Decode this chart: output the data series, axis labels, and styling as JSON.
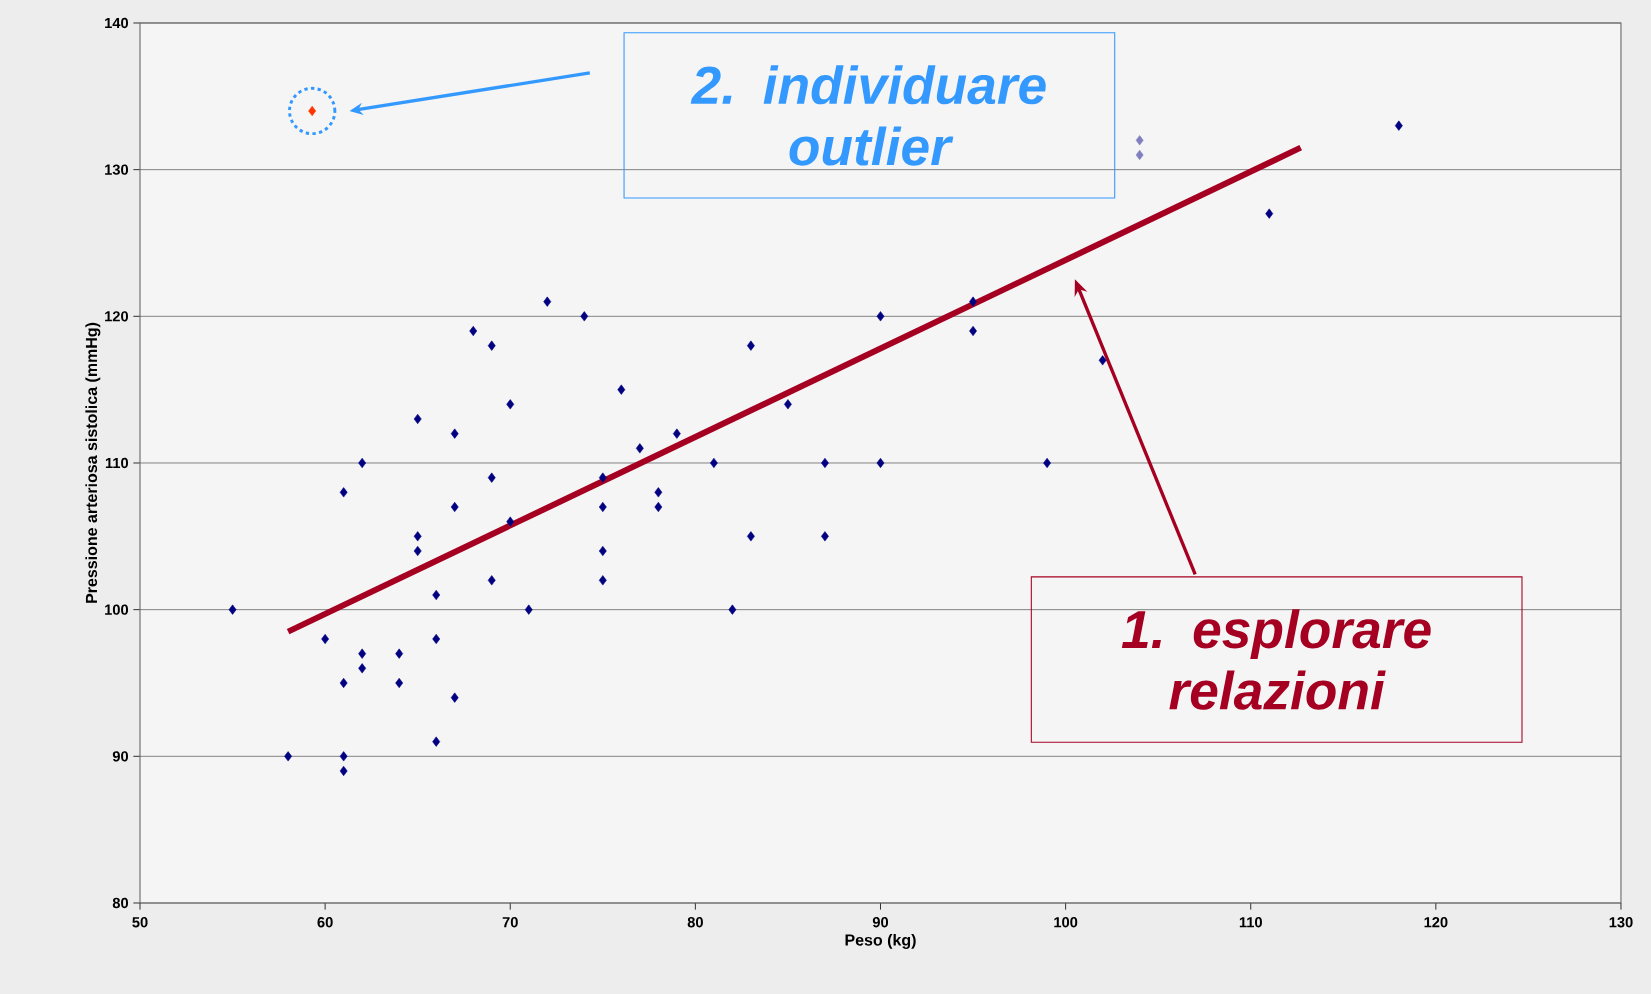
{
  "chart_data": {
    "type": "scatter",
    "xlabel": "Peso (kg)",
    "ylabel": "Pressione arteriosa sistolica  (mmHg)",
    "xlim": [
      50,
      130
    ],
    "xticks": [
      50,
      60,
      70,
      80,
      90,
      100,
      110,
      120,
      130
    ],
    "ylim": [
      80,
      140
    ],
    "yticks": [
      80,
      90,
      100,
      110,
      120,
      130,
      140
    ],
    "grid": "y",
    "marker": "diamond",
    "series": [
      {
        "x": [
          55,
          58,
          59.3,
          60,
          61,
          61,
          61,
          61,
          62,
          62,
          62,
          64,
          64,
          65,
          65,
          65,
          66,
          66,
          66,
          67,
          67,
          67,
          68,
          69,
          69,
          69,
          70,
          70,
          71,
          72,
          74,
          75,
          75,
          75,
          75,
          76,
          77,
          78,
          78,
          79,
          81,
          82,
          83,
          83,
          85,
          87,
          87,
          90,
          90,
          95,
          95,
          99,
          102,
          104,
          104,
          111,
          118
        ],
        "values": [
          100,
          90,
          134,
          98,
          95,
          108,
          90,
          89,
          110,
          97,
          96,
          97,
          95,
          113,
          105,
          104,
          101,
          98,
          91,
          112,
          107,
          94,
          119,
          118,
          109,
          102,
          114,
          106,
          100,
          121,
          120,
          109,
          107,
          104,
          102,
          115,
          111,
          108,
          107,
          112,
          110,
          100,
          118,
          105,
          114,
          110,
          105,
          120,
          110,
          121,
          119,
          110,
          117,
          132,
          131,
          127,
          133
        ],
        "colors": [
          "#000080",
          "#000080",
          "#ff3300",
          "#000080",
          "#000080",
          "#000080",
          "#000080",
          "#000080",
          "#000080",
          "#000080",
          "#000080",
          "#000080",
          "#000080",
          "#000080",
          "#000080",
          "#000080",
          "#000080",
          "#000080",
          "#000080",
          "#000080",
          "#000080",
          "#000080",
          "#000080",
          "#000080",
          "#000080",
          "#000080",
          "#000080",
          "#000080",
          "#000080",
          "#000080",
          "#000080",
          "#000080",
          "#000080",
          "#000080",
          "#000080",
          "#000080",
          "#000080",
          "#000080",
          "#000080",
          "#000080",
          "#000080",
          "#000080",
          "#000080",
          "#000080",
          "#000080",
          "#000080",
          "#000080",
          "#000080",
          "#000080",
          "#000080",
          "#000080",
          "#000080",
          "#000080",
          "#8080c0",
          "#8080c0",
          "#000080",
          "#000080"
        ]
      },
      {
        "type": "line",
        "color": "#a50021",
        "marker": "none",
        "x": [
          58,
          112.7
        ],
        "values": [
          98.5,
          131.5
        ]
      }
    ],
    "annotations": [
      "2. individuare outlier",
      "1. esplorare relazioni"
    ]
  }
}
